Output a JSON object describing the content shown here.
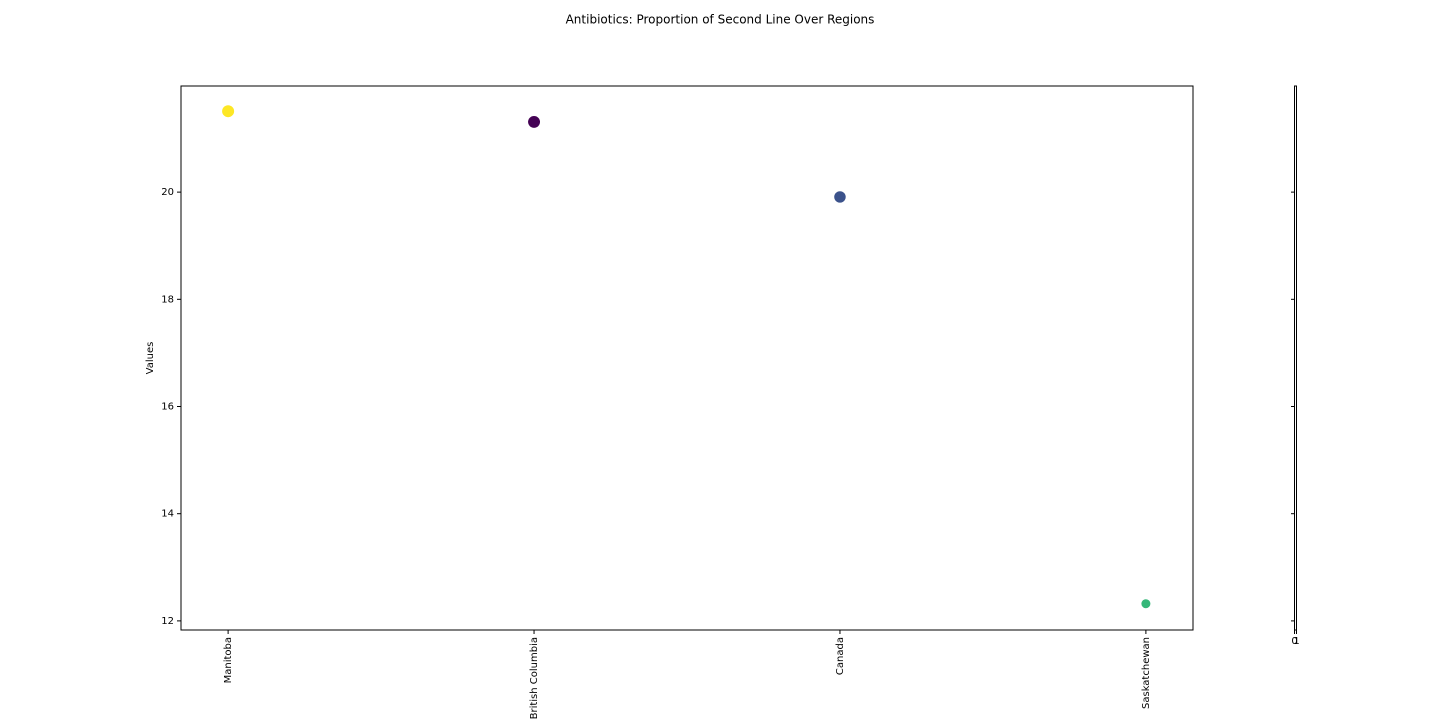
{
  "chart_data": {
    "type": "scatter",
    "title": "Antibiotics: Proportion of Second Line Over Regions",
    "y_label": "Values",
    "categories": [
      "Manitoba",
      "British Columbia",
      "Canada",
      "Saskatchewan"
    ],
    "values": [
      21.51,
      21.31,
      19.91,
      12.32
    ],
    "colors": [
      "#fde725",
      "#440154",
      "#3b528b",
      "#35b779"
    ],
    "ylim": [
      11.83,
      21.98
    ],
    "yticks": [
      12,
      14,
      16,
      18,
      20
    ],
    "side_axis_xticks": [
      0,
      1
    ]
  }
}
